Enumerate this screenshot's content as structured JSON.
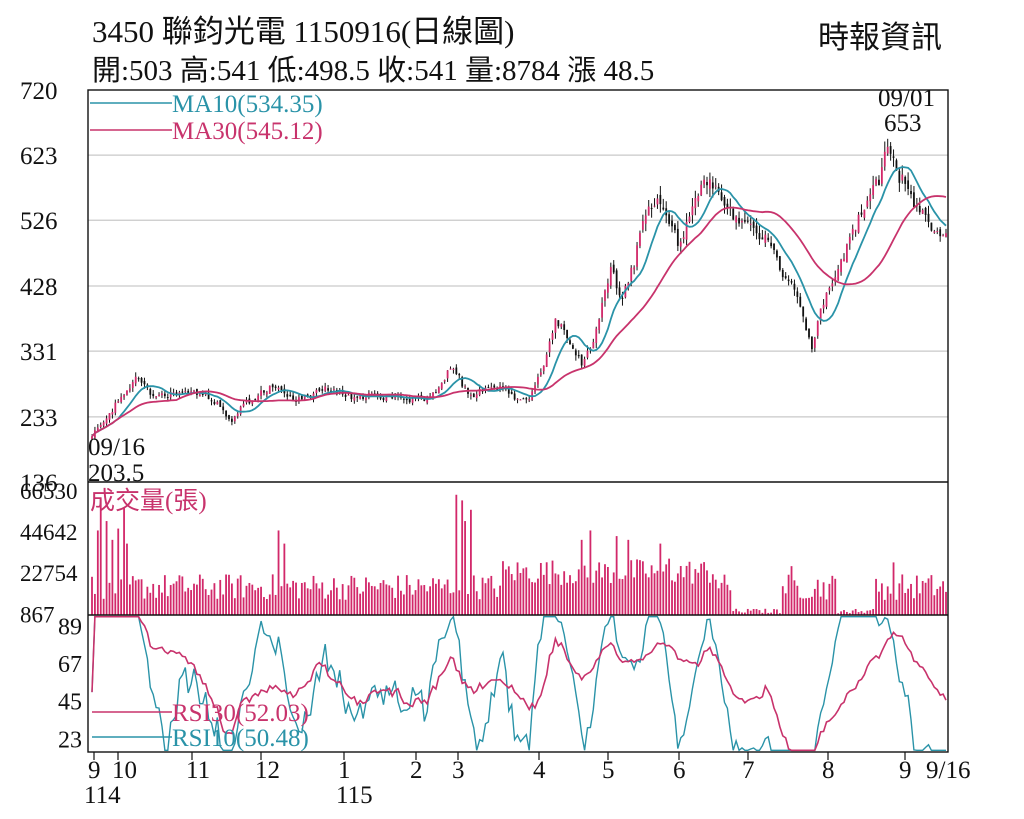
{
  "header": {
    "title": "3450  聯鈞光電 1150916(日線圖)",
    "source": "時報資訊",
    "ohlc": "開:503 高:541 低:498.5 收:541 量:8784 漲 48.5"
  },
  "chart_data": {
    "type": "candlestick",
    "x_axis": {
      "month_ticks": [
        "9",
        "10",
        "11",
        "12",
        "1",
        "2",
        "3",
        "4",
        "5",
        "6",
        "7",
        "8",
        "9",
        "9/16"
      ],
      "year_labels": [
        "114",
        "115"
      ]
    },
    "price_panel": {
      "y_ticks": [
        720,
        623,
        526,
        428,
        331,
        233,
        136
      ],
      "ylim": [
        136,
        720
      ],
      "legend": [
        {
          "label": "MA10(534.35)",
          "color": "#2a93a8"
        },
        {
          "label": "MA30(545.12)",
          "color": "#c8336c"
        }
      ],
      "annotations": [
        {
          "date": "09/01",
          "value": "653"
        },
        {
          "date": "09/16",
          "value": "203.5"
        }
      ],
      "anchors": [
        [
          0,
          205
        ],
        [
          5,
          230
        ],
        [
          10,
          265
        ],
        [
          15,
          290
        ],
        [
          20,
          270
        ],
        [
          25,
          262
        ],
        [
          30,
          272
        ],
        [
          35,
          268
        ],
        [
          40,
          262
        ],
        [
          44,
          250
        ],
        [
          48,
          222
        ],
        [
          52,
          252
        ],
        [
          58,
          268
        ],
        [
          62,
          280
        ],
        [
          66,
          268
        ],
        [
          70,
          258
        ],
        [
          75,
          265
        ],
        [
          80,
          275
        ],
        [
          85,
          268
        ],
        [
          90,
          262
        ],
        [
          95,
          265
        ],
        [
          100,
          260
        ],
        [
          105,
          262
        ],
        [
          110,
          258
        ],
        [
          115,
          262
        ],
        [
          120,
          282
        ],
        [
          123,
          310
        ],
        [
          126,
          290
        ],
        [
          130,
          262
        ],
        [
          134,
          276
        ],
        [
          138,
          280
        ],
        [
          142,
          272
        ],
        [
          146,
          258
        ],
        [
          150,
          262
        ],
        [
          155,
          310
        ],
        [
          159,
          380
        ],
        [
          162,
          362
        ],
        [
          165,
          330
        ],
        [
          168,
          312
        ],
        [
          172,
          342
        ],
        [
          175,
          402
        ],
        [
          178,
          452
        ],
        [
          182,
          410
        ],
        [
          186,
          462
        ],
        [
          190,
          535
        ],
        [
          194,
          560
        ],
        [
          198,
          520
        ],
        [
          201,
          495
        ],
        [
          204,
          515
        ],
        [
          208,
          572
        ],
        [
          212,
          592
        ],
        [
          216,
          552
        ],
        [
          220,
          535
        ],
        [
          224,
          522
        ],
        [
          228,
          508
        ],
        [
          232,
          496
        ],
        [
          236,
          452
        ],
        [
          240,
          432
        ],
        [
          244,
          378
        ],
        [
          247,
          338
        ],
        [
          250,
          392
        ],
        [
          254,
          432
        ],
        [
          258,
          472
        ],
        [
          262,
          518
        ],
        [
          266,
          552
        ],
        [
          270,
          588
        ],
        [
          273,
          632
        ],
        [
          276,
          600
        ],
        [
          280,
          568
        ],
        [
          284,
          540
        ],
        [
          287,
          522
        ],
        [
          290,
          502
        ],
        [
          293,
          512
        ]
      ],
      "MA10": 534.35,
      "MA30": 545.12
    },
    "volume_panel": {
      "title": "成交量(張)",
      "y_ticks": [
        66530,
        44642,
        22754,
        867
      ],
      "ylim": [
        0,
        66530
      ],
      "spikes": [
        [
          2,
          45000
        ],
        [
          3,
          62000
        ],
        [
          5,
          50000
        ],
        [
          7,
          40000
        ],
        [
          9,
          46000
        ],
        [
          11,
          57000
        ],
        [
          12,
          38000
        ],
        [
          64,
          45000
        ],
        [
          66,
          38000
        ],
        [
          125,
          64000
        ],
        [
          127,
          61000
        ],
        [
          128,
          50000
        ],
        [
          130,
          56000
        ],
        [
          168,
          40000
        ],
        [
          171,
          45000
        ],
        [
          180,
          42000
        ],
        [
          184,
          40000
        ],
        [
          195,
          38000
        ],
        [
          198,
          30000
        ],
        [
          240,
          26000
        ],
        [
          275,
          28000
        ]
      ],
      "quiet_ranges": [
        [
          220,
          236
        ],
        [
          256,
          268
        ]
      ]
    },
    "rsi_panel": {
      "y_ticks": [
        89,
        67,
        45,
        23
      ],
      "ylim": [
        15,
        95
      ],
      "legend": [
        {
          "label": "RSI30(52.03)",
          "color": "#c8336c"
        },
        {
          "label": "RSI10(50.48)",
          "color": "#2a93a8"
        }
      ],
      "RSI30": 52.03,
      "RSI10": 50.48
    }
  }
}
